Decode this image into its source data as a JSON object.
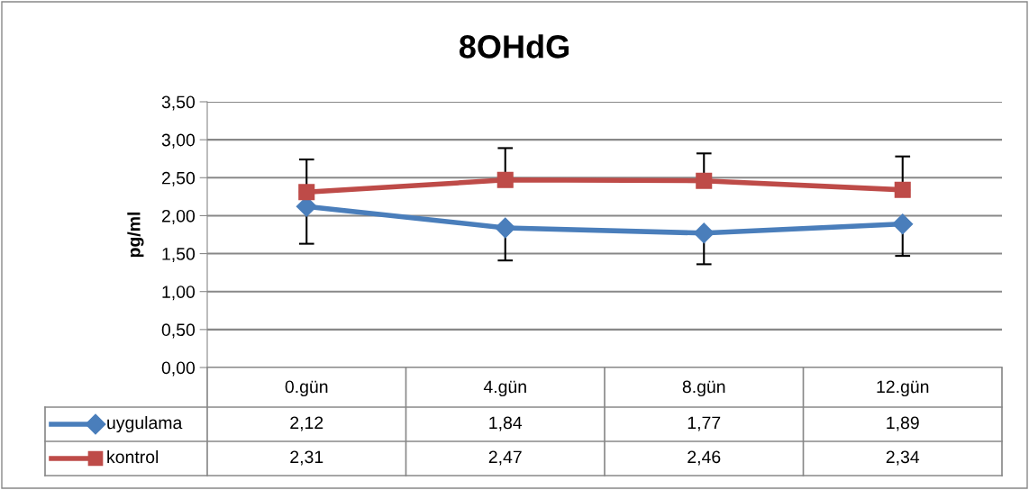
{
  "chart_data": {
    "type": "line",
    "title": "8OHdG",
    "ylabel": "pg/ml",
    "categories": [
      "0.gün",
      "4.gün",
      "8.gün",
      "12.gün"
    ],
    "series": [
      {
        "name": "uygulama",
        "color": "#4a7ebb",
        "marker": "diamond",
        "values": [
          2.12,
          1.84,
          1.77,
          1.89
        ],
        "value_labels": [
          "2,12",
          "1,84",
          "1,77",
          "1,89"
        ],
        "errors": [
          [
            1.63,
            2.12
          ],
          [
            1.41,
            1.84
          ],
          [
            1.36,
            1.77
          ],
          [
            1.47,
            1.89
          ]
        ]
      },
      {
        "name": "kontrol",
        "color": "#be4b48",
        "marker": "square",
        "values": [
          2.31,
          2.47,
          2.46,
          2.34
        ],
        "value_labels": [
          "2,31",
          "2,47",
          "2,46",
          "2,34"
        ],
        "errors": [
          [
            2.31,
            2.74
          ],
          [
            2.47,
            2.89
          ],
          [
            2.46,
            2.82
          ],
          [
            2.34,
            2.78
          ]
        ]
      }
    ],
    "ylim": [
      0,
      3.5
    ],
    "yticks": [
      {
        "value": 0,
        "label": "0,00"
      },
      {
        "value": 0.5,
        "label": "0,50"
      },
      {
        "value": 1,
        "label": "1,00"
      },
      {
        "value": 1.5,
        "label": "1,50"
      },
      {
        "value": 2,
        "label": "2,00"
      },
      {
        "value": 2.5,
        "label": "2,50"
      },
      {
        "value": 3,
        "label": "3,00"
      },
      {
        "value": 3.5,
        "label": "3,50"
      }
    ],
    "grid": "y",
    "legend": "bottom",
    "line_style": "solid"
  }
}
